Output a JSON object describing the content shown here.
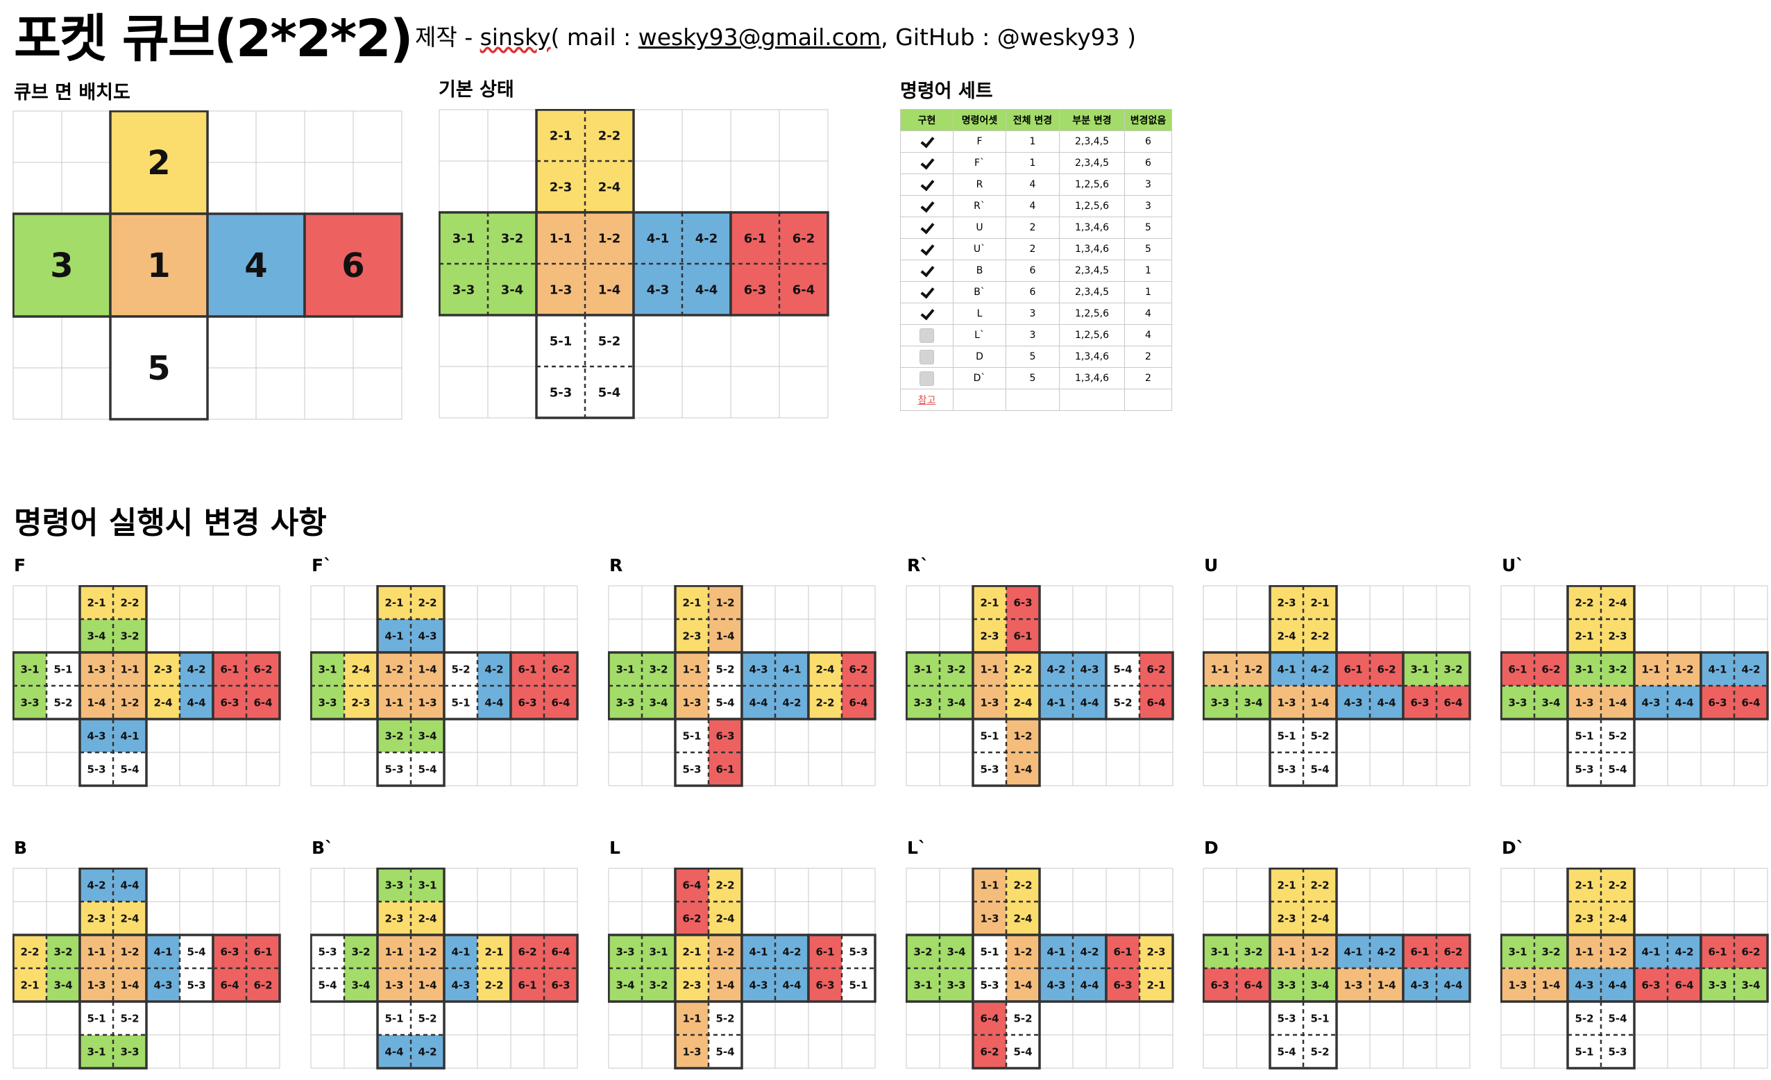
{
  "header": {
    "title": "포켓 큐브(2*2*2)",
    "credit_prefix": "제작 - ",
    "author": "sinsky",
    "credit_mid1": "( mail : ",
    "email": "wesky93@gmail.com",
    "credit_mid2": ", GitHub : @wesky93 )"
  },
  "sections": {
    "layout_title": "큐브 면 배치도",
    "default_title": "기본 상태",
    "commands_title": "명령어 세트",
    "changes_title": "명령어 실행시 변경 사항"
  },
  "colors": {
    "1": "#f5bd7c",
    "2": "#fbdd6e",
    "3": "#a3dc69",
    "4": "#6eb0dc",
    "5": "#ffffff",
    "6": "#ee6161",
    "grid": "#c8c8c8",
    "border": "#333333",
    "table_header": "#a3dc69"
  },
  "layout_faces": [
    {
      "face": "2",
      "label": "2"
    },
    {
      "face": "3",
      "label": "3"
    },
    {
      "face": "1",
      "label": "1"
    },
    {
      "face": "4",
      "label": "4"
    },
    {
      "face": "6",
      "label": "6"
    },
    {
      "face": "5",
      "label": "5"
    }
  ],
  "default_state": {
    "top": [
      "2-1",
      "2-2",
      "2-3",
      "2-4"
    ],
    "left": [
      "3-1",
      "3-2",
      "3-3",
      "3-4"
    ],
    "front": [
      "1-1",
      "1-2",
      "1-3",
      "1-4"
    ],
    "right": [
      "4-1",
      "4-2",
      "4-3",
      "4-4"
    ],
    "back": [
      "6-1",
      "6-2",
      "6-3",
      "6-4"
    ],
    "bottom": [
      "5-1",
      "5-2",
      "5-3",
      "5-4"
    ]
  },
  "command_table": {
    "headers": [
      "구현",
      "명령어셋",
      "전체 변경",
      "부분 변경",
      "변경없음"
    ],
    "rows": [
      {
        "done": true,
        "cmd": "F",
        "full": "1",
        "partial": "2,3,4,5",
        "none": "6"
      },
      {
        "done": true,
        "cmd": "F`",
        "full": "1",
        "partial": "2,3,4,5",
        "none": "6"
      },
      {
        "done": true,
        "cmd": "R",
        "full": "4",
        "partial": "1,2,5,6",
        "none": "3"
      },
      {
        "done": true,
        "cmd": "R`",
        "full": "4",
        "partial": "1,2,5,6",
        "none": "3"
      },
      {
        "done": true,
        "cmd": "U",
        "full": "2",
        "partial": "1,3,4,6",
        "none": "5"
      },
      {
        "done": true,
        "cmd": "U`",
        "full": "2",
        "partial": "1,3,4,6",
        "none": "5"
      },
      {
        "done": true,
        "cmd": "B",
        "full": "6",
        "partial": "2,3,4,5",
        "none": "1"
      },
      {
        "done": true,
        "cmd": "B`",
        "full": "6",
        "partial": "2,3,4,5",
        "none": "1"
      },
      {
        "done": true,
        "cmd": "L",
        "full": "3",
        "partial": "1,2,5,6",
        "none": "4"
      },
      {
        "done": false,
        "cmd": "L`",
        "full": "3",
        "partial": "1,2,5,6",
        "none": "4"
      },
      {
        "done": false,
        "cmd": "D",
        "full": "5",
        "partial": "1,3,4,6",
        "none": "2"
      },
      {
        "done": false,
        "cmd": "D`",
        "full": "5",
        "partial": "1,3,4,6",
        "none": "2"
      }
    ],
    "note": "참고"
  },
  "commands": [
    {
      "label": "F",
      "top": [
        "2-1",
        "2-2",
        "3-4",
        "3-2"
      ],
      "left": [
        "3-1",
        "5-1",
        "3-3",
        "5-2"
      ],
      "front": [
        "1-3",
        "1-1",
        "1-4",
        "1-2"
      ],
      "right": [
        "2-3",
        "4-2",
        "2-4",
        "4-4"
      ],
      "back": [
        "6-1",
        "6-2",
        "6-3",
        "6-4"
      ],
      "bottom": [
        "4-3",
        "4-1",
        "5-3",
        "5-4"
      ]
    },
    {
      "label": "F`",
      "top": [
        "2-1",
        "2-2",
        "4-1",
        "4-3"
      ],
      "left": [
        "3-1",
        "2-4",
        "3-3",
        "2-3"
      ],
      "front": [
        "1-2",
        "1-4",
        "1-1",
        "1-3"
      ],
      "right": [
        "5-2",
        "4-2",
        "5-1",
        "4-4"
      ],
      "back": [
        "6-1",
        "6-2",
        "6-3",
        "6-4"
      ],
      "bottom": [
        "3-2",
        "3-4",
        "5-3",
        "5-4"
      ]
    },
    {
      "label": "R",
      "top": [
        "2-1",
        "1-2",
        "2-3",
        "1-4"
      ],
      "left": [
        "3-1",
        "3-2",
        "3-3",
        "3-4"
      ],
      "front": [
        "1-1",
        "5-2",
        "1-3",
        "5-4"
      ],
      "right": [
        "4-3",
        "4-1",
        "4-4",
        "4-2"
      ],
      "back": [
        "2-4",
        "6-2",
        "2-2",
        "6-4"
      ],
      "bottom": [
        "5-1",
        "6-3",
        "5-3",
        "6-1"
      ]
    },
    {
      "label": "R`",
      "top": [
        "2-1",
        "6-3",
        "2-3",
        "6-1"
      ],
      "left": [
        "3-1",
        "3-2",
        "3-3",
        "3-4"
      ],
      "front": [
        "1-1",
        "2-2",
        "1-3",
        "2-4"
      ],
      "right": [
        "4-2",
        "4-3",
        "4-1",
        "4-4"
      ],
      "back": [
        "5-4",
        "6-2",
        "5-2",
        "6-4"
      ],
      "bottom": [
        "5-1",
        "1-2",
        "5-3",
        "1-4"
      ]
    },
    {
      "label": "U",
      "top": [
        "2-3",
        "2-1",
        "2-4",
        "2-2"
      ],
      "left": [
        "1-1",
        "1-2",
        "3-3",
        "3-4"
      ],
      "front": [
        "4-1",
        "4-2",
        "1-3",
        "1-4"
      ],
      "right": [
        "6-1",
        "6-2",
        "4-3",
        "4-4"
      ],
      "back": [
        "3-1",
        "3-2",
        "6-3",
        "6-4"
      ],
      "bottom": [
        "5-1",
        "5-2",
        "5-3",
        "5-4"
      ]
    },
    {
      "label": "U`",
      "top": [
        "2-2",
        "2-4",
        "2-1",
        "2-3"
      ],
      "left": [
        "6-1",
        "6-2",
        "3-3",
        "3-4"
      ],
      "front": [
        "3-1",
        "3-2",
        "1-3",
        "1-4"
      ],
      "right": [
        "1-1",
        "1-2",
        "4-3",
        "4-4"
      ],
      "back": [
        "4-1",
        "4-2",
        "6-3",
        "6-4"
      ],
      "bottom": [
        "5-1",
        "5-2",
        "5-3",
        "5-4"
      ]
    },
    {
      "label": "B",
      "top": [
        "4-2",
        "4-4",
        "2-3",
        "2-4"
      ],
      "left": [
        "2-2",
        "3-2",
        "2-1",
        "3-4"
      ],
      "front": [
        "1-1",
        "1-2",
        "1-3",
        "1-4"
      ],
      "right": [
        "4-1",
        "5-4",
        "4-3",
        "5-3"
      ],
      "back": [
        "6-3",
        "6-1",
        "6-4",
        "6-2"
      ],
      "bottom": [
        "5-1",
        "5-2",
        "3-1",
        "3-3"
      ]
    },
    {
      "label": "B`",
      "top": [
        "3-3",
        "3-1",
        "2-3",
        "2-4"
      ],
      "left": [
        "5-3",
        "3-2",
        "5-4",
        "3-4"
      ],
      "front": [
        "1-1",
        "1-2",
        "1-3",
        "1-4"
      ],
      "right": [
        "4-1",
        "2-1",
        "4-3",
        "2-2"
      ],
      "back": [
        "6-2",
        "6-4",
        "6-1",
        "6-3"
      ],
      "bottom": [
        "5-1",
        "5-2",
        "4-4",
        "4-2"
      ]
    },
    {
      "label": "L",
      "top": [
        "6-4",
        "2-2",
        "6-2",
        "2-4"
      ],
      "left": [
        "3-3",
        "3-1",
        "3-4",
        "3-2"
      ],
      "front": [
        "2-1",
        "1-2",
        "2-3",
        "1-4"
      ],
      "right": [
        "4-1",
        "4-2",
        "4-3",
        "4-4"
      ],
      "back": [
        "6-1",
        "5-3",
        "6-3",
        "5-1"
      ],
      "bottom": [
        "1-1",
        "5-2",
        "1-3",
        "5-4"
      ]
    },
    {
      "label": "L`",
      "top": [
        "1-1",
        "2-2",
        "1-3",
        "2-4"
      ],
      "left": [
        "3-2",
        "3-4",
        "3-1",
        "3-3"
      ],
      "front": [
        "5-1",
        "1-2",
        "5-3",
        "1-4"
      ],
      "right": [
        "4-1",
        "4-2",
        "4-3",
        "4-4"
      ],
      "back": [
        "6-1",
        "2-3",
        "6-3",
        "2-1"
      ],
      "bottom": [
        "6-4",
        "5-2",
        "6-2",
        "5-4"
      ]
    },
    {
      "label": "D",
      "top": [
        "2-1",
        "2-2",
        "2-3",
        "2-4"
      ],
      "left": [
        "3-1",
        "3-2",
        "6-3",
        "6-4"
      ],
      "front": [
        "1-1",
        "1-2",
        "3-3",
        "3-4"
      ],
      "right": [
        "4-1",
        "4-2",
        "1-3",
        "1-4"
      ],
      "back": [
        "6-1",
        "6-2",
        "4-3",
        "4-4"
      ],
      "bottom": [
        "5-3",
        "5-1",
        "5-4",
        "5-2"
      ]
    },
    {
      "label": "D`",
      "top": [
        "2-1",
        "2-2",
        "2-3",
        "2-4"
      ],
      "left": [
        "3-1",
        "3-2",
        "1-3",
        "1-4"
      ],
      "front": [
        "1-1",
        "1-2",
        "4-3",
        "4-4"
      ],
      "right": [
        "4-1",
        "4-2",
        "6-3",
        "6-4"
      ],
      "back": [
        "6-1",
        "6-2",
        "3-3",
        "3-4"
      ],
      "bottom": [
        "5-2",
        "5-4",
        "5-1",
        "5-3"
      ]
    }
  ]
}
